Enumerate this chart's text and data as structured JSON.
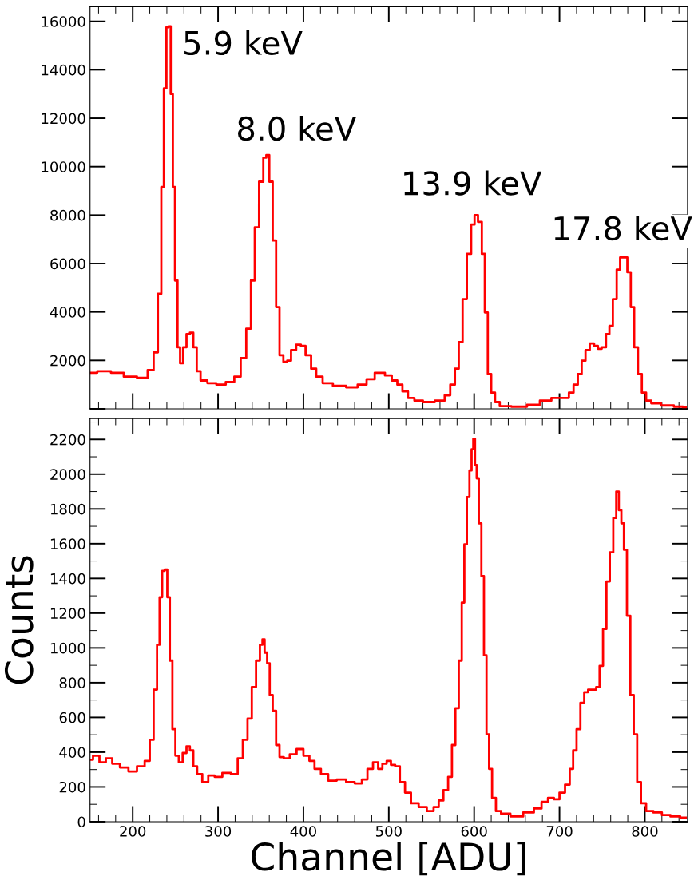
{
  "chart_data": [
    {
      "type": "step",
      "tick_labels": "y",
      "xlim": [
        150,
        850
      ],
      "xticks": [
        200,
        300,
        400,
        500,
        600,
        700,
        800
      ],
      "ylim": [
        0,
        16600
      ],
      "yticks": [
        {
          "value": 0,
          "label": null
        },
        2000,
        4000,
        6000,
        8000,
        10000,
        12000,
        14000,
        16000
      ],
      "annotations": [
        "5.9 keV",
        "8.0 keV",
        "13.9 keV",
        "17.8 keV"
      ],
      "series": [
        {
          "color": "#ff0000",
          "x": [
            150,
            167,
            182,
            197,
            213,
            222,
            227,
            232,
            235,
            238,
            241,
            243,
            246,
            248,
            251,
            254,
            257,
            261,
            265,
            269,
            273,
            277,
            282,
            293,
            303,
            315,
            323,
            330,
            336,
            341,
            345,
            351,
            355,
            358,
            362,
            366,
            370,
            374,
            379,
            383,
            388,
            395,
            399,
            406,
            412,
            418,
            427,
            442,
            458,
            469,
            479,
            488,
            491,
            500,
            507,
            513,
            519,
            526,
            534,
            546,
            562,
            569,
            575,
            580,
            584,
            589,
            594,
            599,
            602,
            607,
            611,
            614,
            618,
            622,
            627,
            633,
            654,
            670,
            684,
            697,
            708,
            714,
            719,
            724,
            728,
            733,
            738,
            743,
            747,
            752,
            757,
            760,
            765,
            769,
            773,
            777,
            782,
            785,
            790,
            794,
            799,
            804,
            811,
            827,
            841,
            848
          ],
          "values": [
            1490,
            1550,
            1490,
            1330,
            1280,
            1600,
            2330,
            4750,
            9160,
            13230,
            15760,
            15800,
            13000,
            9160,
            5300,
            2540,
            1880,
            2540,
            3090,
            3140,
            2540,
            1550,
            1170,
            1060,
            1000,
            1110,
            1330,
            2100,
            3310,
            5300,
            7500,
            9380,
            10370,
            10480,
            9380,
            6950,
            4200,
            2210,
            1940,
            1990,
            2430,
            2650,
            2600,
            2210,
            1660,
            1330,
            1060,
            950,
            890,
            1000,
            1220,
            1490,
            1490,
            1380,
            1170,
            1000,
            720,
            450,
            340,
            280,
            340,
            560,
            1000,
            1660,
            2760,
            4530,
            6400,
            7610,
            8000,
            7720,
            6400,
            3980,
            1440,
            670,
            280,
            110,
            90,
            170,
            340,
            450,
            450,
            670,
            1000,
            1440,
            1990,
            2430,
            2700,
            2600,
            2480,
            2540,
            3090,
            3420,
            4530,
            5750,
            6250,
            6250,
            5640,
            4200,
            2540,
            1440,
            670,
            340,
            230,
            140,
            90,
            60
          ]
        }
      ]
    },
    {
      "type": "step",
      "xlabel": "Channel [ADU]",
      "ylabel": "Counts",
      "xlim": [
        150,
        850
      ],
      "xticks": [
        200,
        300,
        400,
        500,
        600,
        700,
        800
      ],
      "ylim": [
        0,
        2320
      ],
      "yticks": [
        0,
        200,
        400,
        600,
        800,
        1000,
        1200,
        1400,
        1600,
        1800,
        2000,
        2200
      ],
      "series": [
        {
          "color": "#ff0000",
          "x": [
            150,
            157,
            165,
            172,
            180,
            190,
            200,
            210,
            218,
            222,
            227,
            230,
            233,
            236,
            239,
            242,
            245,
            248,
            252,
            256,
            261,
            265,
            269,
            273,
            278,
            285,
            292,
            300,
            310,
            320,
            326,
            332,
            337,
            342,
            347,
            351,
            353,
            356,
            359,
            362,
            366,
            370,
            374,
            380,
            388,
            396,
            404,
            410,
            416,
            425,
            433,
            445,
            455,
            465,
            472,
            478,
            485,
            490,
            495,
            500,
            505,
            510,
            516,
            522,
            530,
            540,
            549,
            556,
            561,
            567,
            572,
            576,
            580,
            584,
            587,
            590,
            593,
            596,
            598,
            600,
            602,
            604,
            607,
            610,
            613,
            616,
            619,
            623,
            628,
            635,
            650,
            665,
            675,
            683,
            690,
            697,
            703,
            710,
            714,
            718,
            722,
            727,
            731,
            736,
            741,
            745,
            749,
            753,
            757,
            761,
            765,
            768,
            771,
            774,
            777,
            781,
            785,
            789,
            793,
            798,
            805,
            815,
            825,
            835,
            848
          ],
          "values": [
            357,
            380,
            342,
            365,
            334,
            312,
            289,
            319,
            350,
            471,
            760,
            1018,
            1292,
            1444,
            1451,
            1292,
            927,
            532,
            380,
            342,
            395,
            433,
            410,
            319,
            274,
            228,
            266,
            258,
            281,
            274,
            365,
            471,
            593,
            775,
            927,
            1018,
            1049,
            973,
            912,
            729,
            638,
            441,
            372,
            365,
            388,
            418,
            380,
            350,
            304,
            274,
            236,
            243,
            228,
            220,
            243,
            304,
            342,
            304,
            334,
            350,
            327,
            319,
            228,
            167,
            106,
            84,
            61,
            84,
            122,
            182,
            258,
            441,
            653,
            927,
            1261,
            1596,
            1869,
            2021,
            2143,
            2204,
            2052,
            1976,
            1717,
            1413,
            957,
            502,
            304,
            137,
            61,
            46,
            30,
            53,
            76,
            114,
            137,
            129,
            167,
            213,
            304,
            410,
            532,
            684,
            745,
            760,
            760,
            775,
            897,
            1109,
            1383,
            1550,
            1748,
            1900,
            1793,
            1717,
            1565,
            1185,
            729,
            502,
            228,
            106,
            61,
            53,
            38,
            30,
            23
          ]
        }
      ]
    }
  ]
}
